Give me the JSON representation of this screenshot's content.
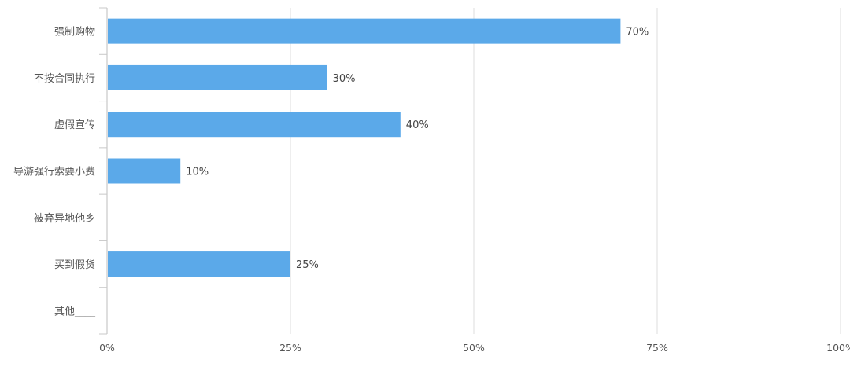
{
  "chart_data": {
    "type": "bar",
    "orientation": "horizontal",
    "categories": [
      "强制购物",
      "不按合同执行",
      "虚假宣传",
      "导游强行索要小费",
      "被弃异地他乡",
      "买到假货",
      "其他____"
    ],
    "values": [
      70,
      30,
      40,
      10,
      0,
      25,
      0
    ],
    "data_labels": [
      "70%",
      "30%",
      "40%",
      "10%",
      "",
      "25%",
      ""
    ],
    "xlim": [
      0,
      100
    ],
    "x_ticks": [
      "0%",
      "25%",
      "50%",
      "75%",
      "100%"
    ],
    "x_tick_values": [
      0,
      25,
      50,
      75,
      100
    ],
    "grid": true,
    "legend": "none",
    "colors": {
      "bar": "#5BA9E9",
      "grid": "#dcdcdc",
      "text": "#555555"
    }
  }
}
